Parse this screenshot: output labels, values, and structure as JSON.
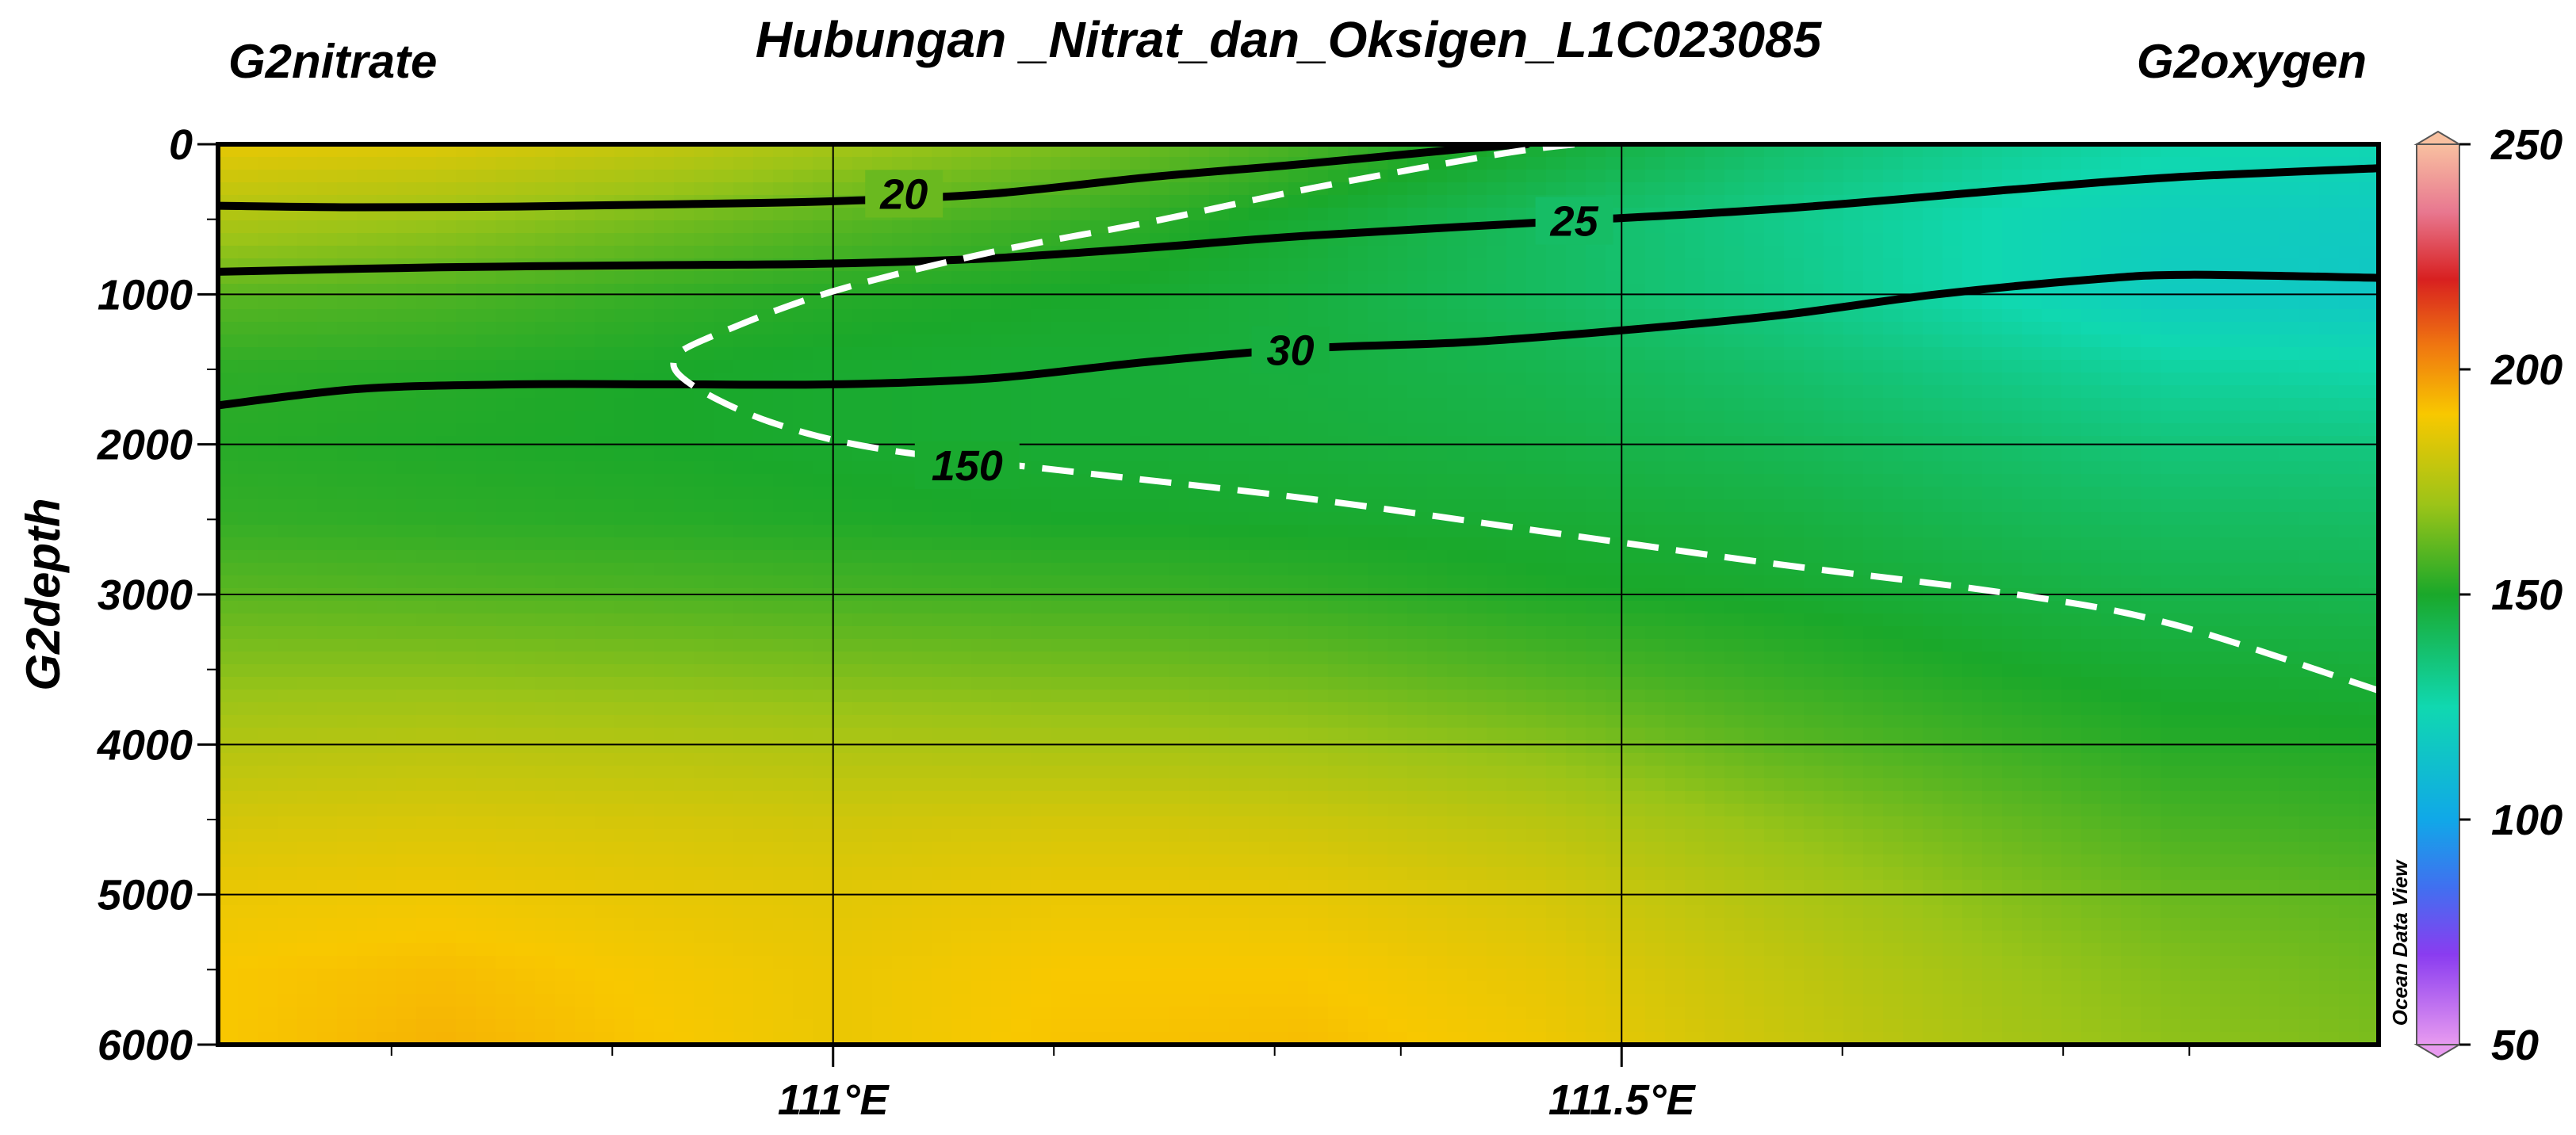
{
  "chart_data": {
    "type": "heatmap",
    "title": "Hubungan _Nitrat_dan_Oksigen_L1C023085",
    "left_variable_label": "G2nitrate",
    "right_variable_label": "G2oxygen",
    "ylabel": "G2depth",
    "xlabel": "",
    "xlim": [
      110.61,
      111.98
    ],
    "ylim": [
      6000,
      0
    ],
    "x_ticks": [
      {
        "value": 111.0,
        "label": "111°E"
      },
      {
        "value": 111.5,
        "label": "111.5°E"
      }
    ],
    "y_ticks": [
      {
        "value": 0,
        "label": "0"
      },
      {
        "value": 1000,
        "label": "1000"
      },
      {
        "value": 2000,
        "label": "2000"
      },
      {
        "value": 3000,
        "label": "3000"
      },
      {
        "value": 4000,
        "label": "4000"
      },
      {
        "value": 5000,
        "label": "5000"
      },
      {
        "value": 6000,
        "label": "6000"
      }
    ],
    "grid": true,
    "colorbar": {
      "variable": "G2oxygen",
      "range": [
        50,
        250
      ],
      "ticks": [
        {
          "value": 50,
          "label": "50"
        },
        {
          "value": 100,
          "label": "100"
        },
        {
          "value": 150,
          "label": "150"
        },
        {
          "value": 200,
          "label": "200"
        },
        {
          "value": 250,
          "label": "250"
        }
      ],
      "stops": [
        {
          "value": 50,
          "color": "#e89bf0"
        },
        {
          "value": 70,
          "color": "#8a3cf0"
        },
        {
          "value": 85,
          "color": "#4070f0"
        },
        {
          "value": 100,
          "color": "#10a8e8"
        },
        {
          "value": 125,
          "color": "#10d8b0"
        },
        {
          "value": 150,
          "color": "#1aa82a"
        },
        {
          "value": 170,
          "color": "#9cc418"
        },
        {
          "value": 190,
          "color": "#f8c800"
        },
        {
          "value": 205,
          "color": "#f07810"
        },
        {
          "value": 220,
          "color": "#d82020"
        },
        {
          "value": 235,
          "color": "#e87890"
        },
        {
          "value": 250,
          "color": "#f8c0a0"
        }
      ],
      "watermark": "Ocean Data View"
    },
    "oxygen_field": {
      "x": [
        110.61,
        110.75,
        110.9,
        111.0,
        111.15,
        111.3,
        111.45,
        111.6,
        111.75,
        111.85,
        111.98
      ],
      "depth": [
        0,
        500,
        1000,
        1500,
        2000,
        2500,
        3000,
        3500,
        4000,
        4500,
        5000,
        5500,
        6000
      ],
      "values": [
        [
          186,
          184,
          178,
          172,
          165,
          157,
          148,
          138,
          130,
          126,
          124
        ],
        [
          174,
          170,
          164,
          160,
          155,
          148,
          140,
          132,
          124,
          120,
          118
        ],
        [
          160,
          158,
          154,
          152,
          150,
          146,
          140,
          133,
          124,
          118,
          116
        ],
        [
          153,
          152,
          150,
          149,
          148,
          146,
          143,
          138,
          132,
          128,
          126
        ],
        [
          152,
          151,
          150,
          149,
          148,
          147,
          145,
          142,
          138,
          135,
          134
        ],
        [
          154,
          153,
          152,
          151,
          150,
          149,
          148,
          146,
          142,
          140,
          139
        ],
        [
          160,
          159,
          158,
          157,
          156,
          154,
          151,
          149,
          146,
          144,
          143
        ],
        [
          167,
          167,
          166,
          165,
          164,
          162,
          158,
          154,
          150,
          148,
          147
        ],
        [
          175,
          176,
          175,
          174,
          173,
          171,
          167,
          160,
          155,
          152,
          151
        ],
        [
          182,
          183,
          182,
          181,
          182,
          180,
          176,
          168,
          161,
          157,
          155
        ],
        [
          187,
          188,
          186,
          185,
          187,
          186,
          182,
          174,
          166,
          162,
          160
        ],
        [
          190,
          192,
          189,
          187,
          190,
          190,
          186,
          178,
          170,
          166,
          163
        ],
        [
          190,
          194,
          190,
          187,
          191,
          192,
          188,
          180,
          172,
          168,
          165
        ]
      ]
    },
    "nitrate_contours": [
      {
        "level": 20,
        "label": "20",
        "points": [
          [
            110.61,
            410
          ],
          [
            110.7,
            420
          ],
          [
            110.8,
            415
          ],
          [
            110.9,
            400
          ],
          [
            111.0,
            380
          ],
          [
            111.1,
            330
          ],
          [
            111.2,
            220
          ],
          [
            111.3,
            130
          ],
          [
            111.4,
            30
          ],
          [
            111.44,
            0
          ]
        ],
        "label_at": [
          111.045,
          330
        ]
      },
      {
        "level": 25,
        "label": "25",
        "points": [
          [
            110.61,
            850
          ],
          [
            110.75,
            820
          ],
          [
            110.9,
            805
          ],
          [
            111.0,
            795
          ],
          [
            111.1,
            760
          ],
          [
            111.2,
            690
          ],
          [
            111.3,
            610
          ],
          [
            111.45,
            520
          ],
          [
            111.6,
            430
          ],
          [
            111.75,
            300
          ],
          [
            111.85,
            220
          ],
          [
            111.98,
            160
          ]
        ],
        "label_at": [
          111.47,
          510
        ]
      },
      {
        "level": 30,
        "label": "30",
        "points": [
          [
            110.61,
            1740
          ],
          [
            110.7,
            1630
          ],
          [
            110.8,
            1600
          ],
          [
            110.9,
            1600
          ],
          [
            111.0,
            1600
          ],
          [
            111.1,
            1560
          ],
          [
            111.2,
            1450
          ],
          [
            111.3,
            1360
          ],
          [
            111.4,
            1320
          ],
          [
            111.5,
            1240
          ],
          [
            111.6,
            1140
          ],
          [
            111.7,
            1000
          ],
          [
            111.8,
            900
          ],
          [
            111.86,
            870
          ],
          [
            111.98,
            890
          ]
        ],
        "label_at": [
          111.29,
          1370
        ]
      }
    ],
    "oxygen_contours": [
      {
        "level": 150,
        "label": "150",
        "points": [
          [
            111.47,
            0
          ],
          [
            111.42,
            70
          ],
          [
            111.3,
            300
          ],
          [
            111.2,
            520
          ],
          [
            111.1,
            720
          ],
          [
            111.0,
            980
          ],
          [
            110.93,
            1250
          ],
          [
            110.9,
            1420
          ],
          [
            110.91,
            1600
          ],
          [
            110.96,
            1850
          ],
          [
            111.03,
            2030
          ],
          [
            111.15,
            2180
          ],
          [
            111.3,
            2360
          ],
          [
            111.45,
            2580
          ],
          [
            111.6,
            2800
          ],
          [
            111.75,
            3000
          ],
          [
            111.85,
            3200
          ],
          [
            111.98,
            3640
          ]
        ],
        "label_at": [
          111.085,
          2140
        ]
      }
    ]
  }
}
